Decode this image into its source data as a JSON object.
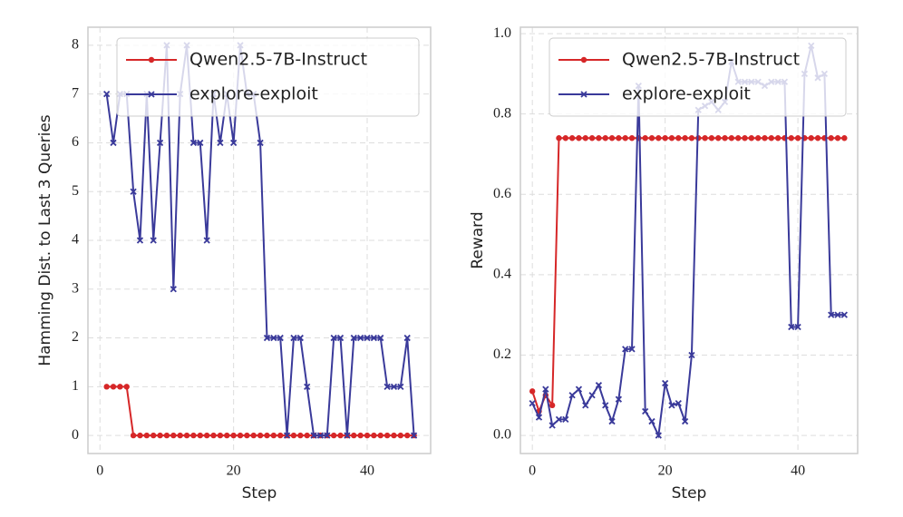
{
  "chart_data": [
    {
      "type": "line",
      "xlabel": "Step",
      "ylabel": "Hamming Dist. to Last 3 Queries",
      "x": [
        1,
        2,
        3,
        4,
        5,
        6,
        7,
        8,
        9,
        10,
        11,
        12,
        13,
        14,
        15,
        16,
        17,
        18,
        19,
        20,
        21,
        22,
        23,
        24,
        25,
        26,
        27,
        28,
        29,
        30,
        31,
        32,
        33,
        34,
        35,
        36,
        37,
        38,
        39,
        40,
        41,
        42,
        43,
        44,
        45,
        46,
        47
      ],
      "series": [
        {
          "name": "Qwen2.5-7B-Instruct",
          "color": "#d62728",
          "marker": "circle",
          "values": [
            1,
            1,
            1,
            1,
            0,
            0,
            0,
            0,
            0,
            0,
            0,
            0,
            0,
            0,
            0,
            0,
            0,
            0,
            0,
            0,
            0,
            0,
            0,
            0,
            0,
            0,
            0,
            0,
            0,
            0,
            0,
            0,
            0,
            0,
            0,
            0,
            0,
            0,
            0,
            0,
            0,
            0,
            0,
            0,
            0,
            0,
            0
          ]
        },
        {
          "name": "explore-exploit",
          "color": "#3a3a9a",
          "marker": "x",
          "values": [
            7,
            6,
            7,
            7,
            5,
            4,
            7,
            4,
            6,
            8,
            3,
            7,
            8,
            6,
            6,
            4,
            7,
            6,
            7,
            6,
            8,
            7,
            7,
            6,
            2,
            2,
            2,
            0,
            2,
            2,
            1,
            0,
            0,
            0,
            2,
            2,
            0,
            2,
            2,
            2,
            2,
            2,
            1,
            1,
            1,
            2,
            0
          ]
        }
      ],
      "xlim": [
        -1.8,
        49.5
      ],
      "ylim": [
        -0.37,
        8.37
      ],
      "xticks": [
        0,
        20,
        40
      ],
      "yticks": [
        0,
        1,
        2,
        3,
        4,
        5,
        6,
        7,
        8
      ],
      "grid": true,
      "legend": "upper right"
    },
    {
      "type": "line",
      "xlabel": "Step",
      "ylabel": "Reward",
      "x": [
        0,
        1,
        2,
        3,
        4,
        5,
        6,
        7,
        8,
        9,
        10,
        11,
        12,
        13,
        14,
        15,
        16,
        17,
        18,
        19,
        20,
        21,
        22,
        23,
        24,
        25,
        26,
        27,
        28,
        29,
        30,
        31,
        32,
        33,
        34,
        35,
        36,
        37,
        38,
        39,
        40,
        41,
        42,
        43,
        44,
        45,
        46,
        47
      ],
      "series": [
        {
          "name": "Qwen2.5-7B-Instruct",
          "color": "#d62728",
          "marker": "circle",
          "values": [
            0.11,
            0.06,
            0.1,
            0.075,
            0.74,
            0.74,
            0.74,
            0.74,
            0.74,
            0.74,
            0.74,
            0.74,
            0.74,
            0.74,
            0.74,
            0.74,
            0.74,
            0.74,
            0.74,
            0.74,
            0.74,
            0.74,
            0.74,
            0.74,
            0.74,
            0.74,
            0.74,
            0.74,
            0.74,
            0.74,
            0.74,
            0.74,
            0.74,
            0.74,
            0.74,
            0.74,
            0.74,
            0.74,
            0.74,
            0.74,
            0.74,
            0.74,
            0.74,
            0.74,
            0.74,
            0.74,
            0.74,
            0.74
          ]
        },
        {
          "name": "explore-exploit",
          "color": "#3a3a9a",
          "marker": "x",
          "values": [
            0.08,
            0.045,
            0.115,
            0.025,
            0.04,
            0.04,
            0.1,
            0.115,
            0.075,
            0.1,
            0.125,
            0.075,
            0.035,
            0.09,
            0.215,
            0.215,
            0.87,
            0.06,
            0.035,
            0.0,
            0.13,
            0.075,
            0.08,
            0.035,
            0.2,
            0.81,
            0.82,
            0.83,
            0.81,
            0.83,
            0.93,
            0.88,
            0.88,
            0.88,
            0.88,
            0.87,
            0.88,
            0.88,
            0.88,
            0.27,
            0.27,
            0.9,
            0.97,
            0.89,
            0.9,
            0.3,
            0.3,
            0.3
          ]
        }
      ],
      "xlim": [
        -1.8,
        49
      ],
      "ylim": [
        -0.045,
        1.016
      ],
      "xticks": [
        0,
        20,
        40
      ],
      "yticks": [
        {
          "value": 0,
          "label": "0.0"
        },
        0.2,
        0.4,
        0.6,
        0.8,
        {
          "value": 1,
          "label": "1.0"
        }
      ],
      "grid": true,
      "legend": "upper right"
    }
  ]
}
